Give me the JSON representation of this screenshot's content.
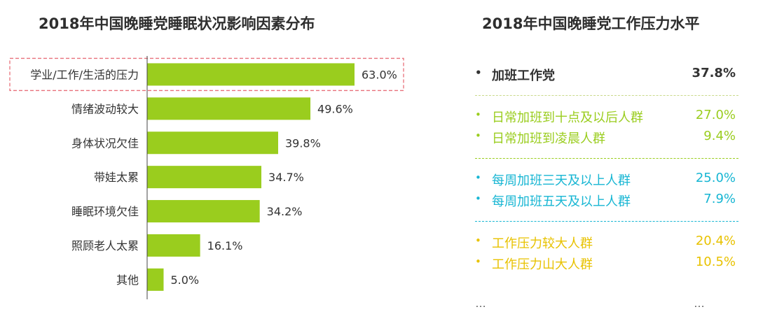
{
  "left_title": "2018年中国晚睡党睡眠状况影响因素分布",
  "right_title": "2018年中国晚睡党工作压力水平",
  "colors": {
    "bar": "#9ACD1E",
    "highlight_box": "#E8707A",
    "group_dark": "#333333",
    "group_green": "#9ACD1E",
    "group_cyan": "#17B6D3",
    "group_yellow": "#E8C200",
    "separator_dark": "#C9D98A",
    "separator_green": "#9ACD1E",
    "separator_cyan": "#17B6D3",
    "separator_yellow": "#E8C200"
  },
  "chart_data": {
    "type": "bar",
    "orientation": "horizontal",
    "title": "2018年中国晚睡党睡眠状况影响因素分布",
    "categories": [
      "学业/工作/生活的压力",
      "情绪波动较大",
      "身体状况欠佳",
      "带娃太累",
      "睡眠环境欠佳",
      "照顾老人太累",
      "其他"
    ],
    "values": [
      63.0,
      49.6,
      39.8,
      34.7,
      34.2,
      16.1,
      5.0
    ],
    "value_labels": [
      "63.0%",
      "49.6%",
      "39.8%",
      "34.7%",
      "34.2%",
      "16.1%",
      "5.0%"
    ],
    "xlim": [
      0,
      63.0
    ],
    "highlighted_category": "学业/工作/生活的压力",
    "grid": false
  },
  "stress_panel": {
    "groups": [
      {
        "color_key": "group_dark",
        "bold": true,
        "items": [
          {
            "label": "加班工作党",
            "value": "37.8%"
          }
        ]
      },
      {
        "color_key": "group_green",
        "bold": false,
        "items": [
          {
            "label": "日常加班到十点及以后人群",
            "value": "27.0%"
          },
          {
            "label": "日常加班到凌晨人群",
            "value": "9.4%"
          }
        ]
      },
      {
        "color_key": "group_cyan",
        "bold": false,
        "items": [
          {
            "label": "每周加班三天及以上人群",
            "value": "25.0%"
          },
          {
            "label": "每周加班五天及以上人群",
            "value": "7.9%"
          }
        ]
      },
      {
        "color_key": "group_yellow",
        "bold": false,
        "items": [
          {
            "label": "工作压力较大人群",
            "value": "20.4%"
          },
          {
            "label": "工作压力山大人群",
            "value": "10.5%"
          }
        ]
      }
    ],
    "bullet": "•",
    "ellipsis_left": "…",
    "ellipsis_right": "…"
  }
}
